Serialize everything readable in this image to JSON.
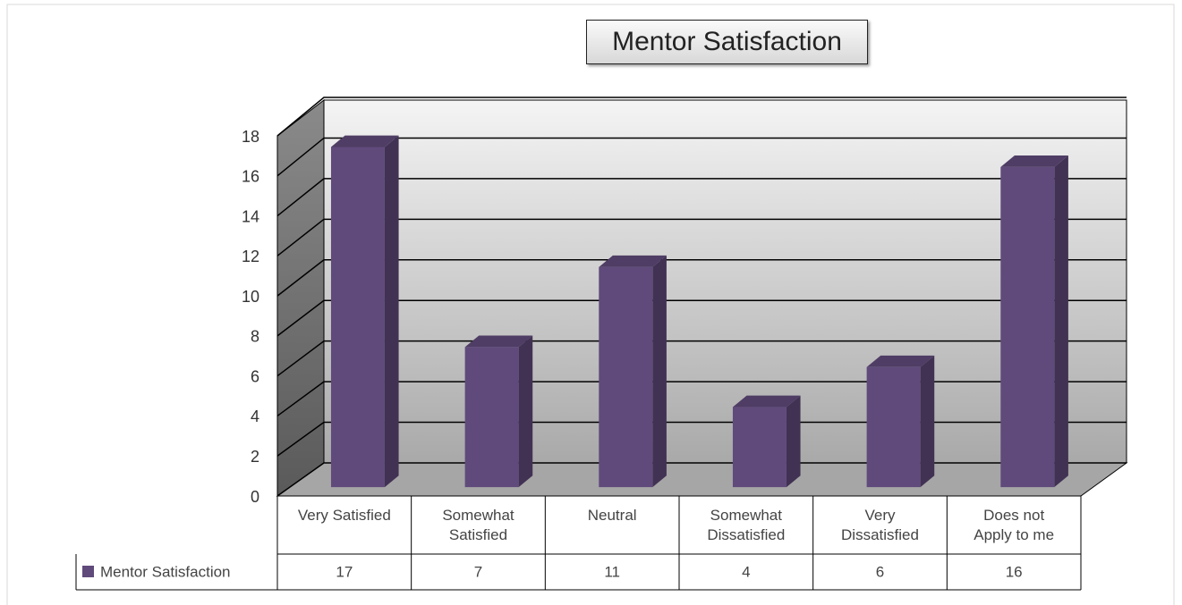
{
  "chart_data": {
    "type": "bar",
    "title": "Mentor Satisfaction",
    "categories": [
      "Very Satisfied",
      "Somewhat Satisfied",
      "Neutral",
      "Somewhat Dissatisfied",
      "Very Dissatisfied",
      "Does not Apply to me"
    ],
    "series": [
      {
        "name": "Mentor Satisfaction",
        "color": "#604a7b",
        "values": [
          17,
          7,
          11,
          4,
          6,
          16
        ]
      }
    ],
    "ylim": [
      0,
      18
    ],
    "yticks": [
      0,
      2,
      4,
      6,
      8,
      10,
      12,
      14,
      16,
      18
    ],
    "grid": true
  }
}
